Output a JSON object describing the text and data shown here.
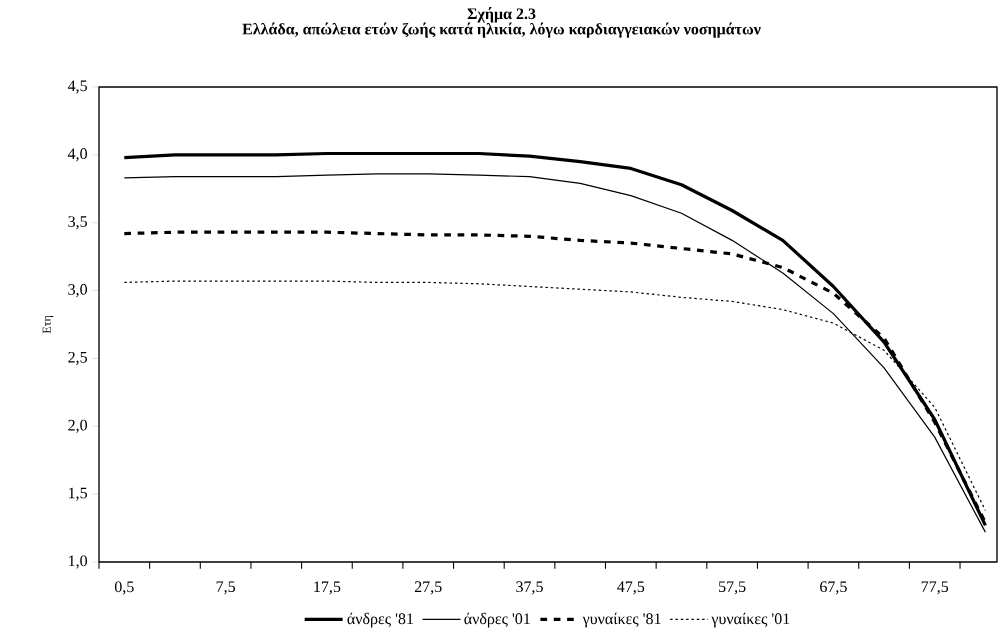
{
  "chart_data": {
    "type": "line",
    "title": "Σχήμα 2.3",
    "subtitle": "Ελλάδα, απώλεια ετών ζωής κατά ηλικία, λόγω καρδιαγγειακών νοσημάτων",
    "ylabel": "Ετη",
    "categories": [
      "0,5",
      null,
      "7,5",
      null,
      "17,5",
      null,
      "27,5",
      null,
      "37,5",
      null,
      "47,5",
      null,
      "57,5",
      null,
      "67,5",
      null,
      "77,5",
      null
    ],
    "series": [
      {
        "name": "άνδρες '81",
        "color": "#000000",
        "line_style": "solid",
        "values": [
          3.98,
          4.0,
          4.0,
          4.0,
          4.01,
          4.01,
          4.01,
          4.01,
          3.99,
          3.95,
          3.9,
          3.78,
          3.59,
          3.37,
          3.03,
          2.62,
          2.05,
          1.27
        ]
      },
      {
        "name": "άνδρες '01",
        "color": "#000000",
        "line_style": "solid",
        "values": [
          3.83,
          3.84,
          3.84,
          3.84,
          3.85,
          3.86,
          3.86,
          3.85,
          3.84,
          3.79,
          3.7,
          3.57,
          3.37,
          3.13,
          2.83,
          2.43,
          1.92,
          1.22
        ]
      },
      {
        "name": "γυναίκες '81",
        "color": "#000000",
        "line_style": "dashed",
        "values": [
          3.42,
          3.43,
          3.43,
          3.43,
          3.43,
          3.42,
          3.41,
          3.41,
          3.4,
          3.37,
          3.35,
          3.31,
          3.27,
          3.17,
          2.98,
          2.65,
          2.03,
          1.29
        ]
      },
      {
        "name": "γυναίκες '01",
        "color": "#000000",
        "line_style": "dotted",
        "values": [
          3.06,
          3.07,
          3.07,
          3.07,
          3.07,
          3.06,
          3.06,
          3.05,
          3.03,
          3.01,
          2.99,
          2.95,
          2.92,
          2.86,
          2.76,
          2.56,
          2.14,
          1.38
        ]
      }
    ],
    "ylim": [
      1.0,
      4.5
    ],
    "yticks": [
      {
        "value": 1.0,
        "label": "1,0"
      },
      {
        "value": 1.5,
        "label": "1,5"
      },
      {
        "value": 2.0,
        "label": "2,0"
      },
      {
        "value": 2.5,
        "label": "2,5"
      },
      {
        "value": 3.0,
        "label": "3,0"
      },
      {
        "value": 3.5,
        "label": "3,5"
      },
      {
        "value": 4.0,
        "label": "4,0"
      },
      {
        "value": 4.5,
        "label": "4,5"
      }
    ],
    "grid": false,
    "legend": "bottom",
    "marker": "none"
  }
}
